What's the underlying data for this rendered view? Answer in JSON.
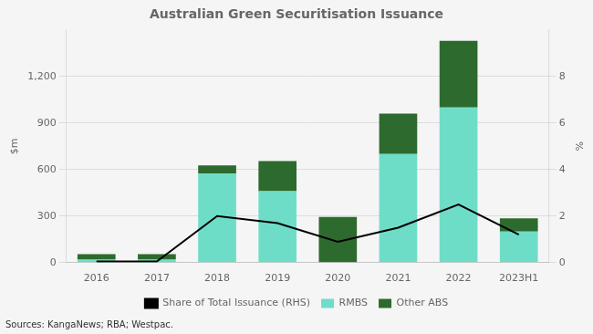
{
  "chart_data": {
    "type": "bar",
    "title": "Australian Green Securitisation Issuance",
    "categories": [
      "2016",
      "2017",
      "2018",
      "2019",
      "2020",
      "2021",
      "2022",
      "2023H1"
    ],
    "series": [
      {
        "name": "RMBS",
        "color": "#6EDDC8",
        "values": [
          20,
          20,
          575,
          460,
          0,
          700,
          1000,
          200
        ]
      },
      {
        "name": "Other ABS",
        "color": "#2D6A2D",
        "values": [
          35,
          35,
          52,
          195,
          295,
          260,
          430,
          85
        ]
      },
      {
        "name": "Share of Total Issuance (RHS)",
        "type": "line",
        "axis": "y2",
        "color": "#000000",
        "values": [
          0.05,
          0.05,
          2.0,
          1.7,
          0.9,
          1.5,
          2.5,
          1.2
        ]
      }
    ],
    "stacked": true,
    "ylabel": "$m",
    "y2label": "%",
    "ylim": [
      0,
      1500
    ],
    "yticks": [
      0,
      300,
      600,
      900,
      {
        "value": 1200,
        "label": "1,200"
      }
    ],
    "y2lim": [
      0,
      10
    ],
    "y2ticks": [
      0,
      2,
      4,
      6,
      8
    ],
    "grid": true,
    "legend": "bottom",
    "source": "Sources: KangaNews; RBA; Westpac."
  }
}
